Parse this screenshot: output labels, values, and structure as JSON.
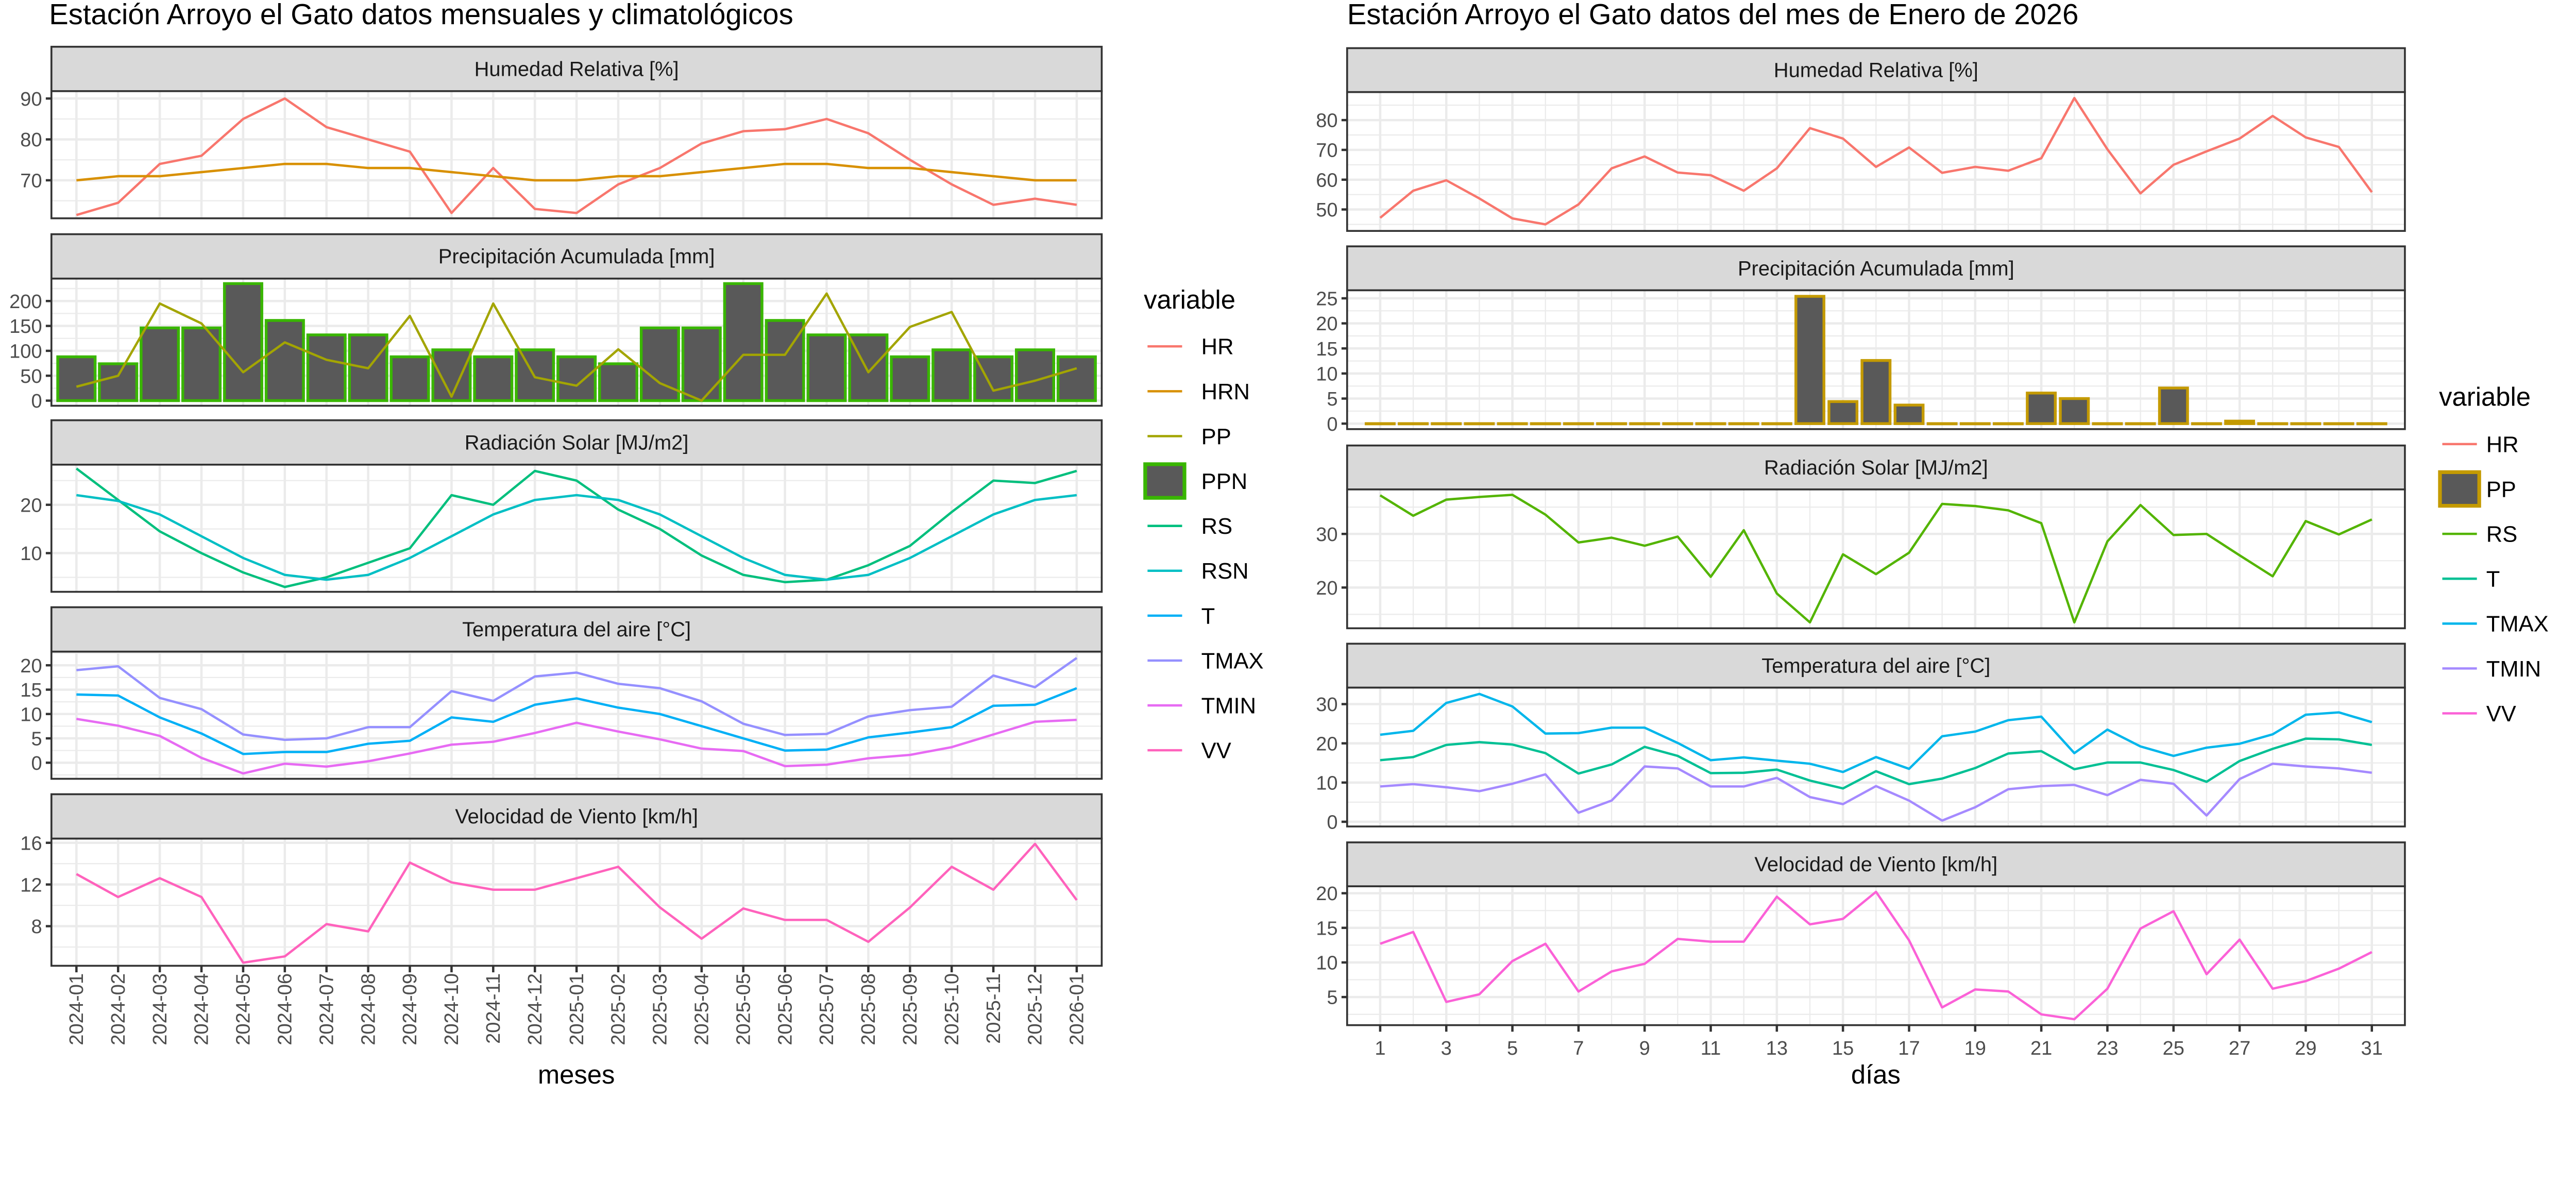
{
  "chart_data": [
    {
      "type": "line",
      "title": "Estación Arroyo el Gato datos mensuales y climatológicos",
      "xlabel": "meses",
      "x": [
        "2024-01",
        "2024-02",
        "2024-03",
        "2024-04",
        "2024-05",
        "2024-06",
        "2024-07",
        "2024-08",
        "2024-09",
        "2024-10",
        "2024-11",
        "2024-12",
        "2025-01",
        "2025-02",
        "2025-03",
        "2025-04",
        "2025-05",
        "2025-06",
        "2025-07",
        "2025-08",
        "2025-09",
        "2025-10",
        "2025-11",
        "2025-12",
        "2026-01"
      ],
      "x_tick_labels": [
        "2024-01",
        "2024-02",
        "2024-03",
        "2024-04",
        "2024-05",
        "2024-06",
        "2024-07",
        "2024-08",
        "2024-09",
        "2024-10",
        "2024-11",
        "2024-12",
        "2025-01",
        "2025-02",
        "2025-03",
        "2025-04",
        "2025-05",
        "2025-06",
        "2025-07",
        "2025-08",
        "2025-09",
        "2025-10",
        "2025-11",
        "2025-12",
        "2026-01"
      ],
      "grid": true,
      "legend": {
        "title": "variable",
        "placement": "right",
        "items": [
          {
            "label": "HR",
            "color": "#F8766D",
            "key": "line"
          },
          {
            "label": "HRN",
            "color": "#D89000",
            "key": "line"
          },
          {
            "label": "PP",
            "color": "#A3A500",
            "key": "line"
          },
          {
            "label": "PPN",
            "color": "#39B600",
            "fill": "#595959",
            "key": "bar"
          },
          {
            "label": "RS",
            "color": "#00BF7D",
            "key": "line"
          },
          {
            "label": "RSN",
            "color": "#00BFC4",
            "key": "line"
          },
          {
            "label": "T",
            "color": "#00B0F6",
            "key": "line"
          },
          {
            "label": "TMAX",
            "color": "#9590FF",
            "key": "line"
          },
          {
            "label": "TMIN",
            "color": "#E76BF3",
            "key": "line"
          },
          {
            "label": "VV",
            "color": "#FF62BC",
            "key": "line"
          }
        ]
      },
      "panels": [
        {
          "strip": "Humedad Relativa [%]",
          "ylim": [
            60.7,
            91.8
          ],
          "yticks": [
            70,
            80,
            90
          ],
          "series": [
            {
              "name": "HR",
              "type": "line",
              "color": "#F8766D",
              "values": [
                61.5,
                64.5,
                74,
                76,
                85,
                90,
                83,
                80,
                77,
                62,
                73,
                63,
                62,
                69,
                73,
                79,
                82,
                82.5,
                85,
                81.5,
                75,
                69,
                64,
                65.5,
                64
              ]
            },
            {
              "name": "HRN",
              "type": "line",
              "color": "#D89000",
              "values": [
                70,
                71,
                71,
                72,
                73,
                74,
                74,
                73,
                73,
                72,
                71,
                70,
                70,
                71,
                71,
                72,
                73,
                74,
                74,
                73,
                73,
                72,
                71,
                70,
                70
              ]
            }
          ]
        },
        {
          "strip": "Precipitación Acumulada [mm]",
          "ylim": [
            -10.3,
            245
          ],
          "yticks": [
            0,
            50,
            100,
            150,
            200
          ],
          "series": [
            {
              "name": "PPN",
              "type": "bar",
              "color": "#39B600",
              "fill": "#595959",
              "values": [
                88,
                74,
                146,
                146,
                235,
                161,
                132,
                132,
                88,
                102,
                88,
                102,
                88,
                74,
                146,
                146,
                235,
                161,
                132,
                132,
                88,
                102,
                88,
                102,
                88
              ]
            },
            {
              "name": "PP",
              "type": "line",
              "color": "#A3A500",
              "values": [
                28,
                50,
                195,
                155,
                57,
                117,
                82,
                65,
                170,
                8,
                195,
                47,
                30,
                103,
                35,
                0,
                92,
                92,
                215,
                57,
                148,
                178,
                20,
                40,
                65
              ]
            }
          ]
        },
        {
          "strip": "Radiación Solar [MJ/m2]",
          "ylim": [
            2.0,
            28.3
          ],
          "yticks": [
            10,
            20
          ],
          "series": [
            {
              "name": "RS",
              "type": "line",
              "color": "#00BF7D",
              "values": [
                27.5,
                21,
                14.5,
                10,
                6,
                3,
                5,
                8,
                11,
                22,
                20,
                27,
                25,
                19,
                15,
                9.5,
                5.5,
                4,
                4.5,
                7.5,
                11.5,
                18.5,
                25,
                24.5,
                27
              ]
            },
            {
              "name": "RSN",
              "type": "line",
              "color": "#00BFC4",
              "values": [
                22,
                20.8,
                18,
                13.5,
                9,
                5.5,
                4.5,
                5.5,
                9,
                13.5,
                18,
                21,
                22,
                21,
                18,
                13.5,
                9,
                5.5,
                4.5,
                5.5,
                9,
                13.5,
                18,
                21,
                22
              ]
            }
          ]
        },
        {
          "strip": "Temperatura del aire [°C]",
          "ylim": [
            -3.3,
            22.8
          ],
          "yticks": [
            0,
            5,
            10,
            15,
            20
          ],
          "series": [
            {
              "name": "TMAX",
              "type": "line",
              "color": "#9590FF",
              "values": [
                19,
                19.8,
                13.3,
                11,
                5.8,
                4.7,
                5,
                7.3,
                7.3,
                14.7,
                12.7,
                17.7,
                18.5,
                16.2,
                15.3,
                12.6,
                8,
                5.7,
                5.9,
                9.5,
                10.8,
                11.5,
                17.9,
                15.5,
                21.5
              ]
            },
            {
              "name": "T",
              "type": "line",
              "color": "#00B0F6",
              "values": [
                14,
                13.8,
                9.3,
                6,
                1.8,
                2.2,
                2.2,
                3.9,
                4.5,
                9.3,
                8.4,
                11.9,
                13.2,
                11.3,
                10,
                7.5,
                5,
                2.5,
                2.7,
                5.2,
                6.2,
                7.3,
                11.7,
                11.9,
                15.3
              ]
            },
            {
              "name": "TMIN",
              "type": "line",
              "color": "#E76BF3",
              "values": [
                9,
                7.6,
                5.5,
                1,
                -2.2,
                -0.2,
                -0.8,
                0.3,
                1.9,
                3.7,
                4.3,
                6.1,
                8.2,
                6.4,
                4.8,
                2.9,
                2.4,
                -0.7,
                -0.4,
                0.9,
                1.6,
                3.2,
                5.8,
                8.4,
                8.8
              ]
            }
          ]
        },
        {
          "strip": "Velocidad de Viento [km/h]",
          "ylim": [
            4.2,
            16.4
          ],
          "yticks": [
            8,
            12,
            16
          ],
          "series": [
            {
              "name": "VV",
              "type": "line",
              "color": "#FF62BC",
              "values": [
                13,
                10.8,
                12.6,
                10.8,
                4.5,
                5.1,
                8.2,
                7.5,
                14.1,
                12.2,
                11.5,
                11.5,
                12.6,
                13.7,
                9.8,
                6.8,
                9.7,
                8.6,
                8.6,
                6.5,
                9.8,
                13.7,
                11.5,
                15.9,
                10.5
              ]
            }
          ]
        }
      ]
    },
    {
      "type": "line",
      "title": "Estación Arroyo el Gato datos del mes de Enero de 2026",
      "xlabel": "días",
      "x": [
        1,
        2,
        3,
        4,
        5,
        6,
        7,
        8,
        9,
        10,
        11,
        12,
        13,
        14,
        15,
        16,
        17,
        18,
        19,
        20,
        21,
        22,
        23,
        24,
        25,
        26,
        27,
        28,
        29,
        30,
        31
      ],
      "x_tick_labels": [
        "1",
        "3",
        "5",
        "7",
        "9",
        "11",
        "13",
        "15",
        "17",
        "19",
        "21",
        "23",
        "25",
        "27",
        "29",
        "31"
      ],
      "xlim": [
        0,
        32
      ],
      "grid": true,
      "legend": {
        "title": "variable",
        "placement": "right",
        "items": [
          {
            "label": "HR",
            "color": "#F8766D",
            "key": "line"
          },
          {
            "label": "PP",
            "color": "#C49A00",
            "fill": "#595959",
            "key": "bar"
          },
          {
            "label": "RS",
            "color": "#53B400",
            "key": "line"
          },
          {
            "label": "T",
            "color": "#00C094",
            "key": "line"
          },
          {
            "label": "TMAX",
            "color": "#00B6EB",
            "key": "line"
          },
          {
            "label": "TMIN",
            "color": "#A58AFF",
            "key": "line"
          },
          {
            "label": "VV",
            "color": "#FB61D7",
            "key": "line"
          }
        ]
      },
      "panels": [
        {
          "strip": "Humedad Relativa [%]",
          "ylim": [
            42.8,
            89.4
          ],
          "yticks": [
            50,
            60,
            70,
            80
          ],
          "series": [
            {
              "name": "HR",
              "type": "line",
              "color": "#F8766D",
              "values": [
                47.2,
                56.3,
                59.8,
                53.7,
                47,
                45,
                51.7,
                63.8,
                67.8,
                62.4,
                61.5,
                56.3,
                63.8,
                77.3,
                73.8,
                64.3,
                70.8,
                62.3,
                64.3,
                63,
                67.2,
                87.4,
                70.2,
                55.4,
                65,
                69.5,
                73.8,
                81.4,
                74.2,
                71,
                55.8
              ]
            }
          ]
        },
        {
          "strip": "Precipitación Acumulada [mm]",
          "ylim": [
            -1.1,
            26.6
          ],
          "yticks": [
            0,
            5,
            10,
            15,
            20,
            25
          ],
          "series": [
            {
              "name": "PP",
              "type": "bar",
              "color": "#C49A00",
              "fill": "#595959",
              "values": [
                0,
                0,
                0,
                0,
                0,
                0,
                0,
                0,
                0,
                0,
                0,
                0,
                0,
                25.4,
                4.4,
                12.6,
                3.7,
                0,
                0,
                0,
                6.1,
                5.0,
                0,
                0,
                7.1,
                0,
                0.5,
                0,
                0,
                0,
                0
              ]
            }
          ]
        },
        {
          "strip": "Radiación Solar [MJ/m2]",
          "ylim": [
            12.4,
            38.3
          ],
          "yticks": [
            20,
            30
          ],
          "series": [
            {
              "name": "RS",
              "type": "line",
              "color": "#53B400",
              "values": [
                37.2,
                33.4,
                36.4,
                36.9,
                37.3,
                33.6,
                28.4,
                29.3,
                27.8,
                29.5,
                22,
                30.7,
                18.9,
                13.5,
                26.2,
                22.5,
                26.5,
                35.6,
                35.2,
                34.4,
                32,
                13.5,
                28.6,
                35.4,
                29.8,
                30,
                26,
                22.1,
                32.4,
                29.9,
                32.7
              ]
            }
          ]
        },
        {
          "strip": "Temperatura del aire [°C]",
          "ylim": [
            -1.2,
            34.2
          ],
          "yticks": [
            0,
            10,
            20,
            30
          ],
          "series": [
            {
              "name": "TMAX",
              "type": "line",
              "color": "#00B6EB",
              "values": [
                22.2,
                23.2,
                30.3,
                32.6,
                29.4,
                22.5,
                22.6,
                24,
                24,
                20.1,
                15.7,
                16.4,
                15.6,
                14.8,
                12.7,
                16.5,
                13.5,
                21.8,
                23,
                25.9,
                26.8,
                17.5,
                23.5,
                19.2,
                16.8,
                18.9,
                19.9,
                22.3,
                27.3,
                27.9,
                25.4
              ]
            },
            {
              "name": "T",
              "type": "line",
              "color": "#00C094",
              "values": [
                15.7,
                16.5,
                19.6,
                20.3,
                19.7,
                17.5,
                12.3,
                14.6,
                19.1,
                16.8,
                12.4,
                12.5,
                13.3,
                10.5,
                8.5,
                12.9,
                9.6,
                11,
                13.7,
                17.4,
                18,
                13.4,
                15.1,
                15.1,
                13.2,
                10.2,
                15.5,
                18.6,
                21.2,
                21,
                19.6
              ]
            },
            {
              "name": "TMIN",
              "type": "line",
              "color": "#A58AFF",
              "values": [
                9,
                9.6,
                8.8,
                7.8,
                9.7,
                12.1,
                2.3,
                5.4,
                14.1,
                13.6,
                9,
                9,
                11.2,
                6.3,
                4.5,
                9.1,
                5.4,
                0.3,
                3.7,
                8.3,
                9.1,
                9.4,
                6.8,
                10.7,
                9.7,
                1.6,
                10.9,
                14.8,
                14.1,
                13.6,
                12.5
              ]
            }
          ]
        },
        {
          "strip": "Velocidad de Viento [km/h]",
          "ylim": [
            0.94,
            21
          ],
          "yticks": [
            5,
            10,
            15,
            20
          ],
          "series": [
            {
              "name": "VV",
              "type": "line",
              "color": "#FB61D7",
              "values": [
                12.7,
                14.4,
                4.3,
                5.4,
                10.2,
                12.7,
                5.8,
                8.7,
                9.8,
                13.4,
                13,
                13,
                19.5,
                15.5,
                16.3,
                20.2,
                13.2,
                3.5,
                6.1,
                5.8,
                2.5,
                1.8,
                6.2,
                14.9,
                17.4,
                8.3,
                13.3,
                6.2,
                7.3,
                9.1,
                11.5
              ]
            }
          ]
        }
      ]
    }
  ]
}
